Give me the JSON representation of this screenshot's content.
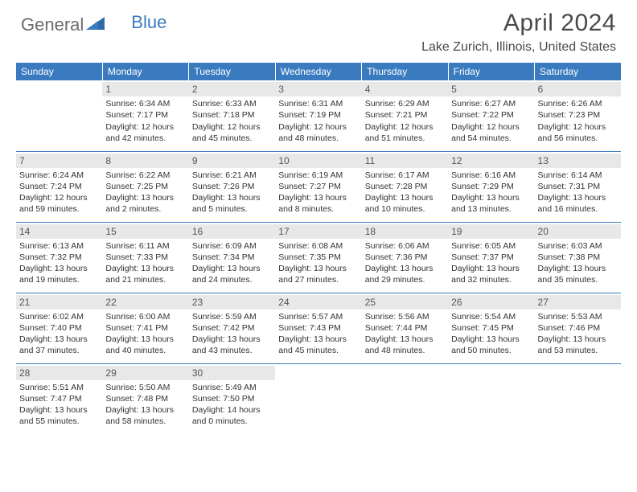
{
  "brand": {
    "part1": "General",
    "part2": "Blue"
  },
  "title": "April 2024",
  "location": "Lake Zurich, Illinois, United States",
  "colors": {
    "header_bg": "#3a7bbf",
    "header_text": "#ffffff",
    "daynum_bg": "#e8e8e8",
    "daynum_text": "#555555",
    "body_text": "#333333",
    "rule": "#3a7bbf",
    "brand_gray": "#6b6b6b",
    "brand_blue": "#3a7bbf"
  },
  "weekdays": [
    "Sunday",
    "Monday",
    "Tuesday",
    "Wednesday",
    "Thursday",
    "Friday",
    "Saturday"
  ],
  "weeks": [
    [
      null,
      {
        "n": "1",
        "sr": "6:34 AM",
        "ss": "7:17 PM",
        "d1": "Daylight: 12 hours",
        "d2": "and 42 minutes."
      },
      {
        "n": "2",
        "sr": "6:33 AM",
        "ss": "7:18 PM",
        "d1": "Daylight: 12 hours",
        "d2": "and 45 minutes."
      },
      {
        "n": "3",
        "sr": "6:31 AM",
        "ss": "7:19 PM",
        "d1": "Daylight: 12 hours",
        "d2": "and 48 minutes."
      },
      {
        "n": "4",
        "sr": "6:29 AM",
        "ss": "7:21 PM",
        "d1": "Daylight: 12 hours",
        "d2": "and 51 minutes."
      },
      {
        "n": "5",
        "sr": "6:27 AM",
        "ss": "7:22 PM",
        "d1": "Daylight: 12 hours",
        "d2": "and 54 minutes."
      },
      {
        "n": "6",
        "sr": "6:26 AM",
        "ss": "7:23 PM",
        "d1": "Daylight: 12 hours",
        "d2": "and 56 minutes."
      }
    ],
    [
      {
        "n": "7",
        "sr": "6:24 AM",
        "ss": "7:24 PM",
        "d1": "Daylight: 12 hours",
        "d2": "and 59 minutes."
      },
      {
        "n": "8",
        "sr": "6:22 AM",
        "ss": "7:25 PM",
        "d1": "Daylight: 13 hours",
        "d2": "and 2 minutes."
      },
      {
        "n": "9",
        "sr": "6:21 AM",
        "ss": "7:26 PM",
        "d1": "Daylight: 13 hours",
        "d2": "and 5 minutes."
      },
      {
        "n": "10",
        "sr": "6:19 AM",
        "ss": "7:27 PM",
        "d1": "Daylight: 13 hours",
        "d2": "and 8 minutes."
      },
      {
        "n": "11",
        "sr": "6:17 AM",
        "ss": "7:28 PM",
        "d1": "Daylight: 13 hours",
        "d2": "and 10 minutes."
      },
      {
        "n": "12",
        "sr": "6:16 AM",
        "ss": "7:29 PM",
        "d1": "Daylight: 13 hours",
        "d2": "and 13 minutes."
      },
      {
        "n": "13",
        "sr": "6:14 AM",
        "ss": "7:31 PM",
        "d1": "Daylight: 13 hours",
        "d2": "and 16 minutes."
      }
    ],
    [
      {
        "n": "14",
        "sr": "6:13 AM",
        "ss": "7:32 PM",
        "d1": "Daylight: 13 hours",
        "d2": "and 19 minutes."
      },
      {
        "n": "15",
        "sr": "6:11 AM",
        "ss": "7:33 PM",
        "d1": "Daylight: 13 hours",
        "d2": "and 21 minutes."
      },
      {
        "n": "16",
        "sr": "6:09 AM",
        "ss": "7:34 PM",
        "d1": "Daylight: 13 hours",
        "d2": "and 24 minutes."
      },
      {
        "n": "17",
        "sr": "6:08 AM",
        "ss": "7:35 PM",
        "d1": "Daylight: 13 hours",
        "d2": "and 27 minutes."
      },
      {
        "n": "18",
        "sr": "6:06 AM",
        "ss": "7:36 PM",
        "d1": "Daylight: 13 hours",
        "d2": "and 29 minutes."
      },
      {
        "n": "19",
        "sr": "6:05 AM",
        "ss": "7:37 PM",
        "d1": "Daylight: 13 hours",
        "d2": "and 32 minutes."
      },
      {
        "n": "20",
        "sr": "6:03 AM",
        "ss": "7:38 PM",
        "d1": "Daylight: 13 hours",
        "d2": "and 35 minutes."
      }
    ],
    [
      {
        "n": "21",
        "sr": "6:02 AM",
        "ss": "7:40 PM",
        "d1": "Daylight: 13 hours",
        "d2": "and 37 minutes."
      },
      {
        "n": "22",
        "sr": "6:00 AM",
        "ss": "7:41 PM",
        "d1": "Daylight: 13 hours",
        "d2": "and 40 minutes."
      },
      {
        "n": "23",
        "sr": "5:59 AM",
        "ss": "7:42 PM",
        "d1": "Daylight: 13 hours",
        "d2": "and 43 minutes."
      },
      {
        "n": "24",
        "sr": "5:57 AM",
        "ss": "7:43 PM",
        "d1": "Daylight: 13 hours",
        "d2": "and 45 minutes."
      },
      {
        "n": "25",
        "sr": "5:56 AM",
        "ss": "7:44 PM",
        "d1": "Daylight: 13 hours",
        "d2": "and 48 minutes."
      },
      {
        "n": "26",
        "sr": "5:54 AM",
        "ss": "7:45 PM",
        "d1": "Daylight: 13 hours",
        "d2": "and 50 minutes."
      },
      {
        "n": "27",
        "sr": "5:53 AM",
        "ss": "7:46 PM",
        "d1": "Daylight: 13 hours",
        "d2": "and 53 minutes."
      }
    ],
    [
      {
        "n": "28",
        "sr": "5:51 AM",
        "ss": "7:47 PM",
        "d1": "Daylight: 13 hours",
        "d2": "and 55 minutes."
      },
      {
        "n": "29",
        "sr": "5:50 AM",
        "ss": "7:48 PM",
        "d1": "Daylight: 13 hours",
        "d2": "and 58 minutes."
      },
      {
        "n": "30",
        "sr": "5:49 AM",
        "ss": "7:50 PM",
        "d1": "Daylight: 14 hours",
        "d2": "and 0 minutes."
      },
      null,
      null,
      null,
      null
    ]
  ]
}
